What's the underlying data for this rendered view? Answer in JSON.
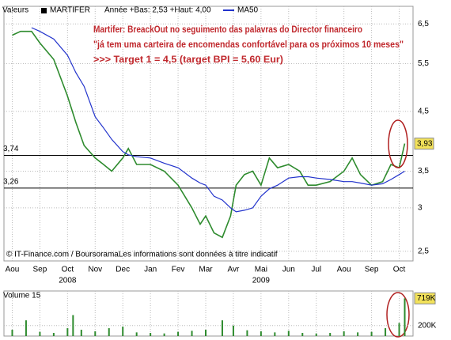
{
  "header": {
    "label": "Valeurs",
    "range": "Année +Bas: 2,53 +Haut: 4,00"
  },
  "chart_data": [
    {
      "type": "line",
      "annotation": [
        "Martifer: BreackOut no seguimento das palavras do Director financeiro",
        "\"já tem uma carteira de encomendas confortável para os próximos 10 meses\"",
        ">>> Target 1  = 4,5      (target  BPI = 5,60 Eur)"
      ],
      "footer": "© IT-Finance.com / BoursoramaLes informations sont données à titre indicatif",
      "x": [
        0,
        0.3,
        0.7,
        1.0,
        1.5,
        2.0,
        2.3,
        2.6,
        3.0,
        3.3,
        3.6,
        4.0,
        4.2,
        4.5,
        5.0,
        5.5,
        6.0,
        6.5,
        6.8,
        7.0,
        7.3,
        7.6,
        7.9,
        8.1,
        8.4,
        8.7,
        9.0,
        9.3,
        9.6,
        10.0,
        10.4,
        10.7,
        11.0,
        11.5,
        12.0,
        12.3,
        12.6,
        13.0,
        13.4,
        13.7,
        14.0,
        14.2
      ],
      "series": [
        {
          "name": "MARTIFER",
          "color": "#2e8b2e",
          "values": [
            6.2,
            6.3,
            6.3,
            6.0,
            5.6,
            4.8,
            4.3,
            3.9,
            3.7,
            3.6,
            3.5,
            3.7,
            3.85,
            3.6,
            3.6,
            3.5,
            3.3,
            3.0,
            2.8,
            2.9,
            2.7,
            2.65,
            2.9,
            3.3,
            3.45,
            3.5,
            3.3,
            3.7,
            3.55,
            3.6,
            3.5,
            3.3,
            3.3,
            3.35,
            3.5,
            3.7,
            3.45,
            3.3,
            3.35,
            3.6,
            3.55,
            3.93
          ]
        },
        {
          "name": "MA50",
          "color": "#2233cc",
          "values": [
            null,
            null,
            6.4,
            6.3,
            6.1,
            5.7,
            5.3,
            5.0,
            4.4,
            4.2,
            4.0,
            3.8,
            3.75,
            3.72,
            3.7,
            3.62,
            3.55,
            3.4,
            3.33,
            3.3,
            3.15,
            3.1,
            3.0,
            2.95,
            2.97,
            3.0,
            3.15,
            3.25,
            3.3,
            3.4,
            3.42,
            3.42,
            3.4,
            3.38,
            3.35,
            3.35,
            3.33,
            3.3,
            3.32,
            3.38,
            3.45,
            3.5
          ]
        }
      ],
      "log_scale": true,
      "xlim": [
        -0.3,
        14.5
      ],
      "xticks": [
        {
          "value": 0,
          "label": "Aou"
        },
        {
          "value": 1,
          "label": "Sep"
        },
        {
          "value": 2,
          "label": "Oct"
        },
        {
          "value": 3,
          "label": "Nov"
        },
        {
          "value": 4,
          "label": "Dec"
        },
        {
          "value": 5,
          "label": "Jan"
        },
        {
          "value": 6,
          "label": "Fev"
        },
        {
          "value": 7,
          "label": "Mar"
        },
        {
          "value": 8,
          "label": "Avr"
        },
        {
          "value": 9,
          "label": "Mai"
        },
        {
          "value": 10,
          "label": "Jun"
        },
        {
          "value": 11,
          "label": "Jul"
        },
        {
          "value": 12,
          "label": "Aou"
        },
        {
          "value": 13,
          "label": "Sep"
        },
        {
          "value": 14,
          "label": "Oct"
        }
      ],
      "year_labels": [
        {
          "value": 2,
          "label": "2008"
        },
        {
          "value": 9,
          "label": "2009"
        }
      ],
      "ylim": [
        2.4,
        7.0
      ],
      "yticks": [
        {
          "value": 2.5,
          "label": "2,5"
        },
        3,
        {
          "value": 3.5,
          "label": "3,5"
        },
        {
          "value": 4.5,
          "label": "4,5"
        },
        {
          "value": 5.5,
          "label": "5,5"
        },
        {
          "value": 6.5,
          "label": "6,5"
        }
      ],
      "reference_lines": [
        {
          "value": 3.74,
          "label": "3,74"
        },
        {
          "value": 3.26,
          "label": "3,26"
        }
      ],
      "last_value": {
        "value": 3.93,
        "label": "3,93"
      },
      "grid": true
    },
    {
      "type": "bar",
      "title": "Volume 15",
      "color": "#2e8b2e",
      "x": [
        0,
        0.5,
        1.0,
        1.5,
        2.0,
        2.2,
        2.5,
        3.0,
        3.5,
        4.0,
        4.5,
        5.0,
        5.5,
        6.0,
        6.5,
        7.0,
        7.6,
        8.0,
        8.5,
        9.0,
        9.5,
        10.0,
        10.5,
        11.0,
        11.5,
        12.0,
        12.5,
        13.0,
        13.5,
        14.0,
        14.2
      ],
      "values": [
        120000,
        300000,
        80000,
        60000,
        150000,
        400000,
        120000,
        90000,
        150000,
        180000,
        70000,
        60000,
        50000,
        80000,
        100000,
        120000,
        300000,
        200000,
        110000,
        90000,
        70000,
        100000,
        60000,
        50000,
        60000,
        90000,
        70000,
        80000,
        150000,
        250000,
        719000
      ],
      "ylim": [
        0,
        860000
      ],
      "yticks": [
        {
          "value": 200000,
          "label": "200K"
        }
      ],
      "last_value": {
        "value": 719000,
        "label": "719K"
      },
      "grid": true
    }
  ]
}
